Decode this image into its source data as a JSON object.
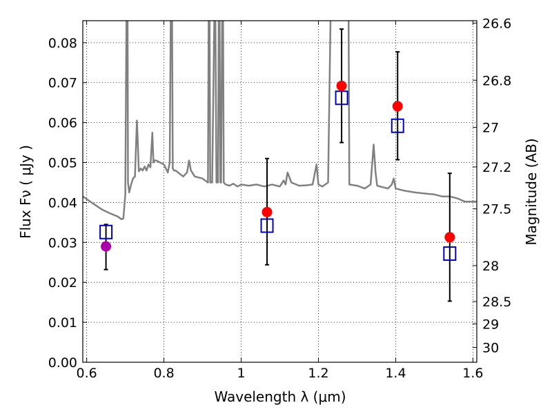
{
  "chart_data": {
    "type": "scatter",
    "xlabel": "Wavelength  λ (μm)",
    "ylabel": "Flux  Fν  ( μJy )",
    "y2label": "Magnitude (AB)",
    "xlim": [
      0.59,
      1.61
    ],
    "ylim": [
      0.0,
      0.0855
    ],
    "grid": true,
    "x_ticks": [
      0.6,
      0.8,
      1.0,
      1.2,
      1.4,
      1.6
    ],
    "x_tick_labels": [
      "0.6",
      "0.8",
      "1",
      "1.2",
      "1.4",
      "1.6"
    ],
    "y_ticks": [
      0.0,
      0.01,
      0.02,
      0.03,
      0.04,
      0.05,
      0.06,
      0.07,
      0.08
    ],
    "y_tick_labels": [
      "0.00",
      "0.01",
      "0.02",
      "0.03",
      "0.04",
      "0.05",
      "0.06",
      "0.07",
      "0.08"
    ],
    "y2_ticks_flux": [
      0.0849,
      0.0706,
      0.0588,
      0.0489,
      0.0384,
      0.0242,
      0.0152,
      0.0096,
      0.0037
    ],
    "y2_tick_labels": [
      "26.6",
      "26.8",
      "27",
      "27.2",
      "27.5",
      "28",
      "28.5",
      "29",
      "30"
    ],
    "colors": {
      "template": "#808080",
      "observed": "#ff0000",
      "observed_alt": "#aa00aa",
      "model": "#0000cc",
      "errorbar": "#000000"
    },
    "template_line": {
      "x": [
        0.59,
        0.62,
        0.64,
        0.66,
        0.68,
        0.69,
        0.695,
        0.7,
        0.703,
        0.705,
        0.706,
        0.707,
        0.71,
        0.715,
        0.72,
        0.725,
        0.73,
        0.732,
        0.735,
        0.74,
        0.745,
        0.75,
        0.755,
        0.76,
        0.765,
        0.77,
        0.773,
        0.775,
        0.78,
        0.79,
        0.8,
        0.81,
        0.815,
        0.818,
        0.821,
        0.823,
        0.826,
        0.83,
        0.85,
        0.86,
        0.865,
        0.87,
        0.88,
        0.9,
        0.914,
        0.916,
        0.918,
        0.92,
        0.925,
        0.931,
        0.933,
        0.936,
        0.94,
        0.942,
        0.944,
        0.946,
        0.948,
        0.951,
        0.953,
        0.955,
        0.96,
        0.97,
        0.98,
        0.99,
        1.0,
        1.02,
        1.04,
        1.06,
        1.08,
        1.1,
        1.11,
        1.115,
        1.12,
        1.13,
        1.15,
        1.17,
        1.185,
        1.195,
        1.2,
        1.21,
        1.225,
        1.232,
        1.234,
        1.236,
        1.24,
        1.25,
        1.26,
        1.27,
        1.275,
        1.278,
        1.28,
        1.3,
        1.32,
        1.335,
        1.343,
        1.348,
        1.352,
        1.36,
        1.38,
        1.39,
        1.395,
        1.4,
        1.42,
        1.45,
        1.48,
        1.5,
        1.52,
        1.54,
        1.56,
        1.58,
        1.6,
        1.61
      ],
      "y": [
        0.0415,
        0.0395,
        0.0382,
        0.0373,
        0.0365,
        0.0358,
        0.036,
        0.042,
        0.087,
        0.09,
        0.087,
        0.045,
        0.0425,
        0.0445,
        0.046,
        0.0465,
        0.0605,
        0.056,
        0.0478,
        0.0485,
        0.048,
        0.049,
        0.048,
        0.0495,
        0.0488,
        0.0575,
        0.05,
        0.0505,
        0.0505,
        0.05,
        0.0495,
        0.0475,
        0.05,
        0.09,
        0.09,
        0.0485,
        0.048,
        0.048,
        0.0465,
        0.0475,
        0.0505,
        0.048,
        0.0465,
        0.046,
        0.045,
        0.09,
        0.09,
        0.045,
        0.045,
        0.09,
        0.09,
        0.045,
        0.045,
        0.09,
        0.09,
        0.045,
        0.045,
        0.09,
        0.09,
        0.045,
        0.0445,
        0.0442,
        0.0447,
        0.044,
        0.0445,
        0.0442,
        0.0445,
        0.044,
        0.0445,
        0.044,
        0.0455,
        0.0445,
        0.0475,
        0.045,
        0.0442,
        0.0443,
        0.0445,
        0.0495,
        0.0445,
        0.044,
        0.045,
        0.09,
        0.09,
        0.09,
        0.09,
        0.09,
        0.09,
        0.09,
        0.09,
        0.09,
        0.0445,
        0.0442,
        0.0435,
        0.0445,
        0.0545,
        0.0475,
        0.0442,
        0.044,
        0.0435,
        0.0445,
        0.046,
        0.0435,
        0.043,
        0.0425,
        0.0422,
        0.042,
        0.0415,
        0.0415,
        0.041,
        0.0402,
        0.0402,
        0.0402
      ]
    },
    "observed": [
      {
        "x": 0.65,
        "y": 0.029,
        "yerr_low": 0.0232,
        "yerr_high": 0.0345,
        "color": "#aa00aa"
      },
      {
        "x": 1.067,
        "y": 0.0376,
        "yerr_low": 0.0244,
        "yerr_high": 0.051,
        "color": "#ff0000"
      },
      {
        "x": 1.26,
        "y": 0.0692,
        "yerr_low": 0.055,
        "yerr_high": 0.0834,
        "color": "#ff0000"
      },
      {
        "x": 1.405,
        "y": 0.0641,
        "yerr_low": 0.0507,
        "yerr_high": 0.0777,
        "color": "#ff0000"
      },
      {
        "x": 1.54,
        "y": 0.0313,
        "yerr_low": 0.0153,
        "yerr_high": 0.0473,
        "color": "#ff0000"
      }
    ],
    "model": [
      {
        "x": 0.65,
        "y": 0.0326
      },
      {
        "x": 1.067,
        "y": 0.0342
      },
      {
        "x": 1.26,
        "y": 0.0662
      },
      {
        "x": 1.405,
        "y": 0.0592
      },
      {
        "x": 1.54,
        "y": 0.0272
      }
    ]
  }
}
